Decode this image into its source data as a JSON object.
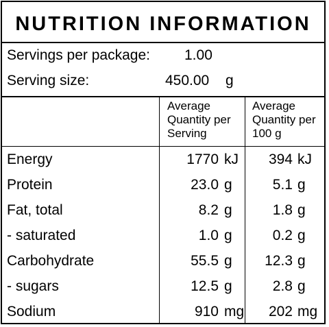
{
  "title": "NUTRITION INFORMATION",
  "servings_per_package": {
    "label": "Servings per package:",
    "value": "1.00"
  },
  "serving_size": {
    "label": "Serving size:",
    "value": "450.00",
    "unit": "g"
  },
  "columns": {
    "per_serving_header": [
      "Average",
      "Quantity per",
      "Serving"
    ],
    "per_100g_header": [
      "Average",
      "Quantity per",
      "100 g"
    ]
  },
  "rows": [
    {
      "name": "Energy",
      "serving": "1770",
      "serving_unit": "kJ",
      "per100": "394",
      "per100_unit": "kJ"
    },
    {
      "name": "Protein",
      "serving": "23.0",
      "serving_unit": "g",
      "per100": "5.1",
      "per100_unit": "g"
    },
    {
      "name": "Fat, total",
      "serving": "8.2",
      "serving_unit": "g",
      "per100": "1.8",
      "per100_unit": "g"
    },
    {
      "name": "- saturated",
      "serving": "1.0",
      "serving_unit": "g",
      "per100": "0.2",
      "per100_unit": "g"
    },
    {
      "name": "Carbohydrate",
      "serving": "55.5",
      "serving_unit": "g",
      "per100": "12.3",
      "per100_unit": "g"
    },
    {
      "name": "- sugars",
      "serving": "12.5",
      "serving_unit": "g",
      "per100": "2.8",
      "per100_unit": "g"
    },
    {
      "name": "Sodium",
      "serving": "910",
      "serving_unit": "mg",
      "per100": "202",
      "per100_unit": "mg"
    }
  ]
}
